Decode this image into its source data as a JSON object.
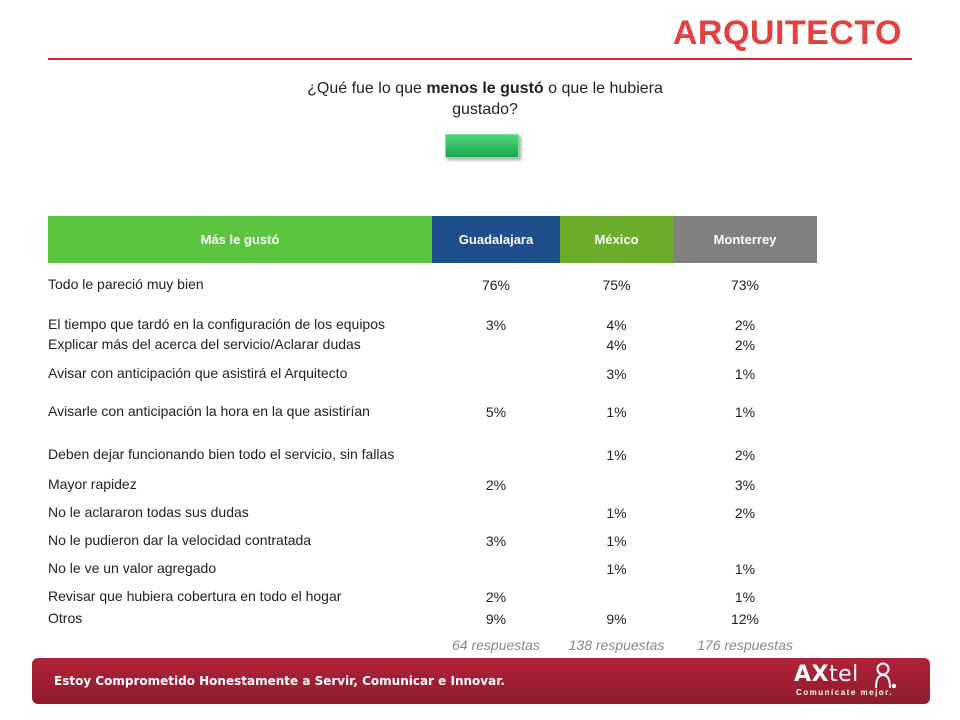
{
  "title": "ARQUITECTO",
  "question": {
    "prefix": "¿Qué fue lo que ",
    "bold": "menos le gustó",
    "suffix": " o que le hubiera gustado?"
  },
  "colors": {
    "title": "#e34040",
    "col_label": "#5cc43e",
    "col_gdl": "#1f4e8c",
    "col_mex": "#6bad2a",
    "col_mty": "#808080",
    "footer": "#a01f33",
    "button": "#2fbd5c"
  },
  "table": {
    "headers": [
      "Más le gustó",
      "Guadalajara",
      "México",
      "Monterrey"
    ],
    "rows": [
      {
        "label": "Todo le pareció muy bien",
        "gdl": "76%",
        "mex": "75%",
        "mty": "73%"
      },
      {
        "label": "El tiempo que tardó en la configuración de los equipos",
        "gdl": "3%",
        "mex": "4%",
        "mty": "2%"
      },
      {
        "label": "Explicar más del acerca del servicio/Aclarar dudas",
        "gdl": "",
        "mex": "4%",
        "mty": "2%"
      },
      {
        "label": "Avisar con anticipación que asistirá el Arquitecto",
        "gdl": "",
        "mex": "3%",
        "mty": "1%"
      },
      {
        "label": "Avisarle con anticipación la hora en la que asistirían",
        "gdl": "5%",
        "mex": "1%",
        "mty": "1%"
      },
      {
        "label": "Deben dejar funcionando bien todo el servicio, sin fallas",
        "gdl": "",
        "mex": "1%",
        "mty": "2%"
      },
      {
        "label": "Mayor rapidez",
        "gdl": "2%",
        "mex": "",
        "mty": "3%"
      },
      {
        "label": "No le aclararon todas sus dudas",
        "gdl": "",
        "mex": "1%",
        "mty": "2%"
      },
      {
        "label": "No le pudieron dar la velocidad contratada",
        "gdl": "3%",
        "mex": "1%",
        "mty": ""
      },
      {
        "label": "No le ve un valor agregado",
        "gdl": "",
        "mex": "1%",
        "mty": "1%"
      },
      {
        "label": "Revisar que hubiera cobertura en todo el hogar",
        "gdl": "2%",
        "mex": "",
        "mty": "1%"
      },
      {
        "label": "Otros",
        "gdl": "9%",
        "mex": "9%",
        "mty": "12%"
      }
    ],
    "respuestas": [
      "64 respuestas",
      "138 respuestas",
      "176 respuestas"
    ]
  },
  "footer": {
    "text": "Estoy Comprometido Honestamente a Servir, Comunicar e Innovar.",
    "logo_bold": "AX",
    "logo_light": "tel",
    "logo_icon": "axtel-mascot-icon",
    "tagline": "Comunícate mejor."
  }
}
